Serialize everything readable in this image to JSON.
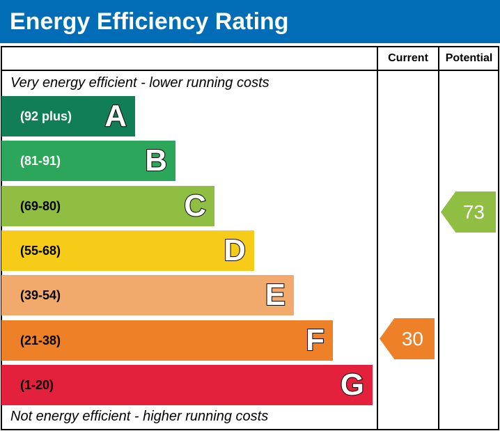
{
  "header": {
    "title": "Energy Efficiency Rating"
  },
  "columns": {
    "current": "Current",
    "potential": "Potential"
  },
  "notes": {
    "top": "Very energy efficient - lower running costs",
    "bottom": "Not energy efficient - higher running costs"
  },
  "chart_data": {
    "type": "bar",
    "title": "Energy Efficiency Rating",
    "bands": [
      {
        "letter": "A",
        "range": "(92 plus)",
        "color": "#127e57"
      },
      {
        "letter": "B",
        "range": "(81-91)",
        "color": "#2ba65a"
      },
      {
        "letter": "C",
        "range": "(69-80)",
        "color": "#8fbe43"
      },
      {
        "letter": "D",
        "range": "(55-68)",
        "color": "#f6cc19"
      },
      {
        "letter": "E",
        "range": "(39-54)",
        "color": "#f2aa6c"
      },
      {
        "letter": "F",
        "range": "(21-38)",
        "color": "#ee8127"
      },
      {
        "letter": "G",
        "range": "(1-20)",
        "color": "#e4213d"
      }
    ],
    "current": {
      "value": "30",
      "band": "F",
      "color": "#ee8127"
    },
    "potential": {
      "value": "73",
      "band": "C",
      "color": "#8fbe43"
    }
  }
}
